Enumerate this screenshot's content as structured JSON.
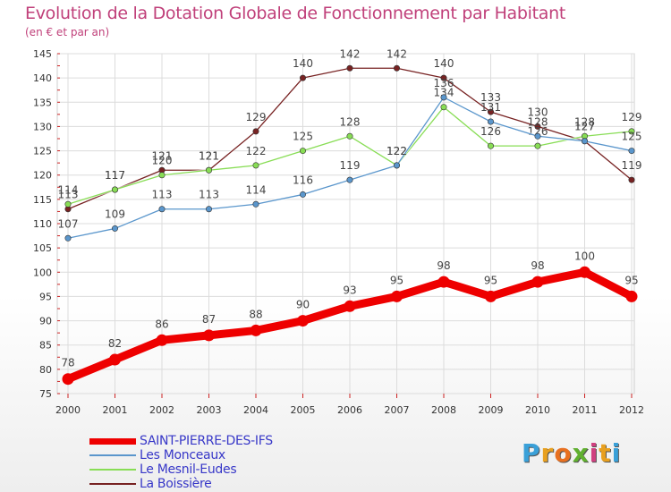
{
  "title": "Evolution de la Dotation Globale de Fonctionnement par Habitant",
  "subtitle": "(en € et par an)",
  "chart_data": {
    "type": "line",
    "categories": [
      "2000",
      "2001",
      "2002",
      "2003",
      "2004",
      "2005",
      "2006",
      "2007",
      "2008",
      "2009",
      "2010",
      "2011",
      "2012"
    ],
    "ylim": [
      75,
      145
    ],
    "yticks": [
      75,
      80,
      85,
      90,
      95,
      100,
      105,
      110,
      115,
      120,
      125,
      130,
      135,
      140,
      145
    ],
    "grid": true,
    "legend_position": "bottom-left",
    "series": [
      {
        "name": "SAINT-PIERRE-DES-IFS",
        "color": "#ee0000",
        "values": [
          78,
          82,
          86,
          87,
          88,
          90,
          93,
          95,
          98,
          95,
          98,
          100,
          95
        ]
      },
      {
        "name": "Les Monceaux",
        "color": "#5a96cc",
        "values": [
          107,
          109,
          113,
          113,
          114,
          116,
          119,
          122,
          136,
          131,
          128,
          127,
          125
        ]
      },
      {
        "name": "Le Mesnil-Eudes",
        "color": "#88dd55",
        "values": [
          114,
          117,
          120,
          121,
          122,
          125,
          128,
          122,
          134,
          126,
          126,
          128,
          129
        ]
      },
      {
        "name": "La Boissière",
        "color": "#772222",
        "values": [
          113,
          117,
          121,
          121,
          129,
          140,
          142,
          142,
          140,
          133,
          130,
          127,
          119
        ]
      }
    ]
  },
  "logo": {
    "letters": [
      "P",
      "r",
      "o",
      "x",
      "i",
      "t",
      "i"
    ],
    "colors": [
      "#3aa0d8",
      "#e8a020",
      "#e87020",
      "#60b030",
      "#d04080",
      "#e8a020",
      "#3aa0d8"
    ]
  }
}
